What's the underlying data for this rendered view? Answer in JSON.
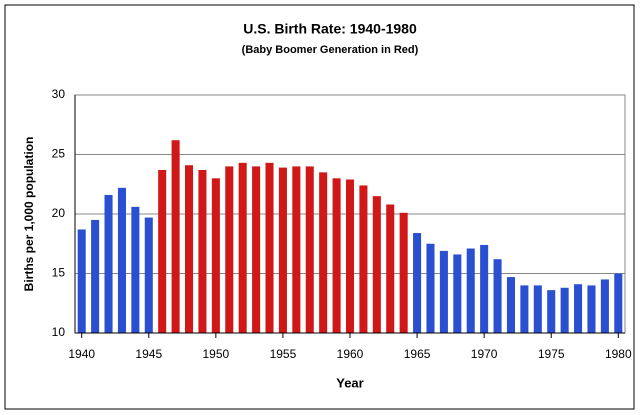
{
  "chart_data": {
    "type": "bar",
    "title": "U.S. Birth Rate: 1940-1980",
    "subtitle": "(Baby Boomer Generation in Red)",
    "x_label": "Year",
    "y_label": "Births per 1,000 population",
    "x": [
      1940,
      1941,
      1942,
      1943,
      1944,
      1945,
      1946,
      1947,
      1948,
      1949,
      1950,
      1951,
      1952,
      1953,
      1954,
      1955,
      1956,
      1957,
      1958,
      1959,
      1960,
      1961,
      1962,
      1963,
      1964,
      1965,
      1966,
      1967,
      1968,
      1969,
      1970,
      1971,
      1972,
      1973,
      1974,
      1975,
      1976,
      1977,
      1978,
      1979,
      1980
    ],
    "values": [
      18.7,
      19.5,
      21.6,
      22.2,
      20.6,
      19.7,
      23.7,
      26.2,
      24.1,
      23.7,
      23.0,
      24.0,
      24.3,
      24.0,
      24.3,
      23.9,
      24.0,
      24.0,
      23.5,
      23.0,
      22.9,
      22.4,
      21.5,
      20.8,
      20.1,
      18.4,
      17.5,
      16.9,
      16.6,
      17.1,
      17.4,
      16.2,
      14.7,
      14.0,
      14.0,
      13.6,
      13.8,
      14.1,
      14.0,
      14.5,
      15.0
    ],
    "colors": [
      "#2a4fd0",
      "#2a4fd0",
      "#2a4fd0",
      "#2a4fd0",
      "#2a4fd0",
      "#2a4fd0",
      "#d01818",
      "#d01818",
      "#d01818",
      "#d01818",
      "#d01818",
      "#d01818",
      "#d01818",
      "#d01818",
      "#d01818",
      "#d01818",
      "#d01818",
      "#d01818",
      "#d01818",
      "#d01818",
      "#d01818",
      "#d01818",
      "#d01818",
      "#d01818",
      "#d01818",
      "#2a4fd0",
      "#2a4fd0",
      "#2a4fd0",
      "#2a4fd0",
      "#2a4fd0",
      "#2a4fd0",
      "#2a4fd0",
      "#2a4fd0",
      "#2a4fd0",
      "#2a4fd0",
      "#2a4fd0",
      "#2a4fd0",
      "#2a4fd0",
      "#2a4fd0",
      "#2a4fd0",
      "#2a4fd0"
    ],
    "xlim": [
      1939.5,
      1980.5
    ],
    "xticks": [
      1940,
      1945,
      1950,
      1955,
      1960,
      1965,
      1970,
      1975,
      1980
    ],
    "ylim": [
      10,
      30
    ],
    "yticks": [
      10,
      15,
      20,
      25,
      30
    ],
    "grid": true
  }
}
